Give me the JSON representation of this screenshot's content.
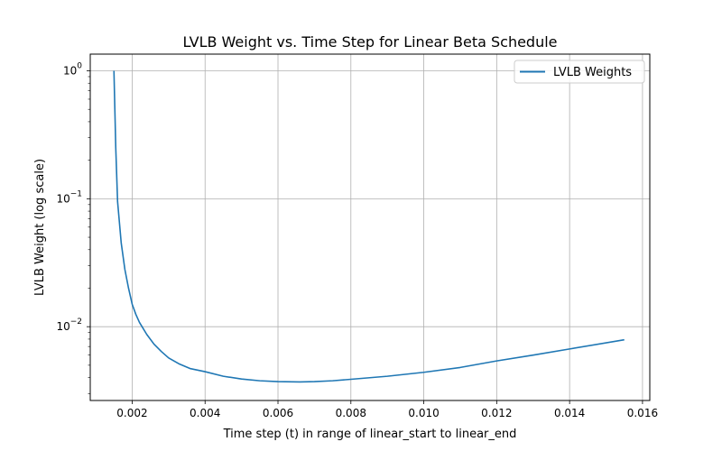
{
  "chart_data": {
    "type": "line",
    "title": "LVLB Weight vs. Time Step for Linear Beta Schedule",
    "xlabel": "Time step (t) in range of linear_start to linear_end",
    "ylabel": "LVLB Weight (log scale)",
    "xscale": "linear",
    "yscale": "log",
    "xlim": [
      0.00085,
      0.0162
    ],
    "ylim": [
      0.00265,
      1.35
    ],
    "x_ticks": [
      "0.002",
      "0.004",
      "0.006",
      "0.008",
      "0.010",
      "0.012",
      "0.014",
      "0.016"
    ],
    "x_tick_values": [
      0.002,
      0.004,
      0.006,
      0.008,
      0.01,
      0.012,
      0.014,
      0.016
    ],
    "y_ticks": [
      {
        "value": 0.01,
        "base": "10",
        "exp": "−2"
      },
      {
        "value": 0.1,
        "base": "10",
        "exp": "−1"
      },
      {
        "value": 1,
        "base": "10",
        "exp": "0"
      }
    ],
    "grid": true,
    "legend": {
      "position": "top-right",
      "entries": [
        "LVLB Weights"
      ]
    },
    "series": [
      {
        "name": "LVLB Weights",
        "color": "#1f77b4",
        "x": [
          0.0015,
          0.00155,
          0.0016,
          0.0017,
          0.0018,
          0.0019,
          0.002,
          0.0021,
          0.0022,
          0.0024,
          0.0026,
          0.0028,
          0.003,
          0.0033,
          0.0036,
          0.004,
          0.0045,
          0.005,
          0.0055,
          0.006,
          0.0066,
          0.007,
          0.0075,
          0.008,
          0.009,
          0.01,
          0.011,
          0.012,
          0.013,
          0.014,
          0.0155
        ],
        "y": [
          1.0,
          0.25,
          0.095,
          0.045,
          0.028,
          0.02,
          0.015,
          0.0125,
          0.0108,
          0.0087,
          0.0073,
          0.0064,
          0.0057,
          0.0051,
          0.0047,
          0.00445,
          0.0041,
          0.0039,
          0.00378,
          0.00372,
          0.0037,
          0.00372,
          0.00378,
          0.00388,
          0.0041,
          0.0044,
          0.0048,
          0.0054,
          0.006,
          0.0067,
          0.0079
        ]
      }
    ]
  }
}
